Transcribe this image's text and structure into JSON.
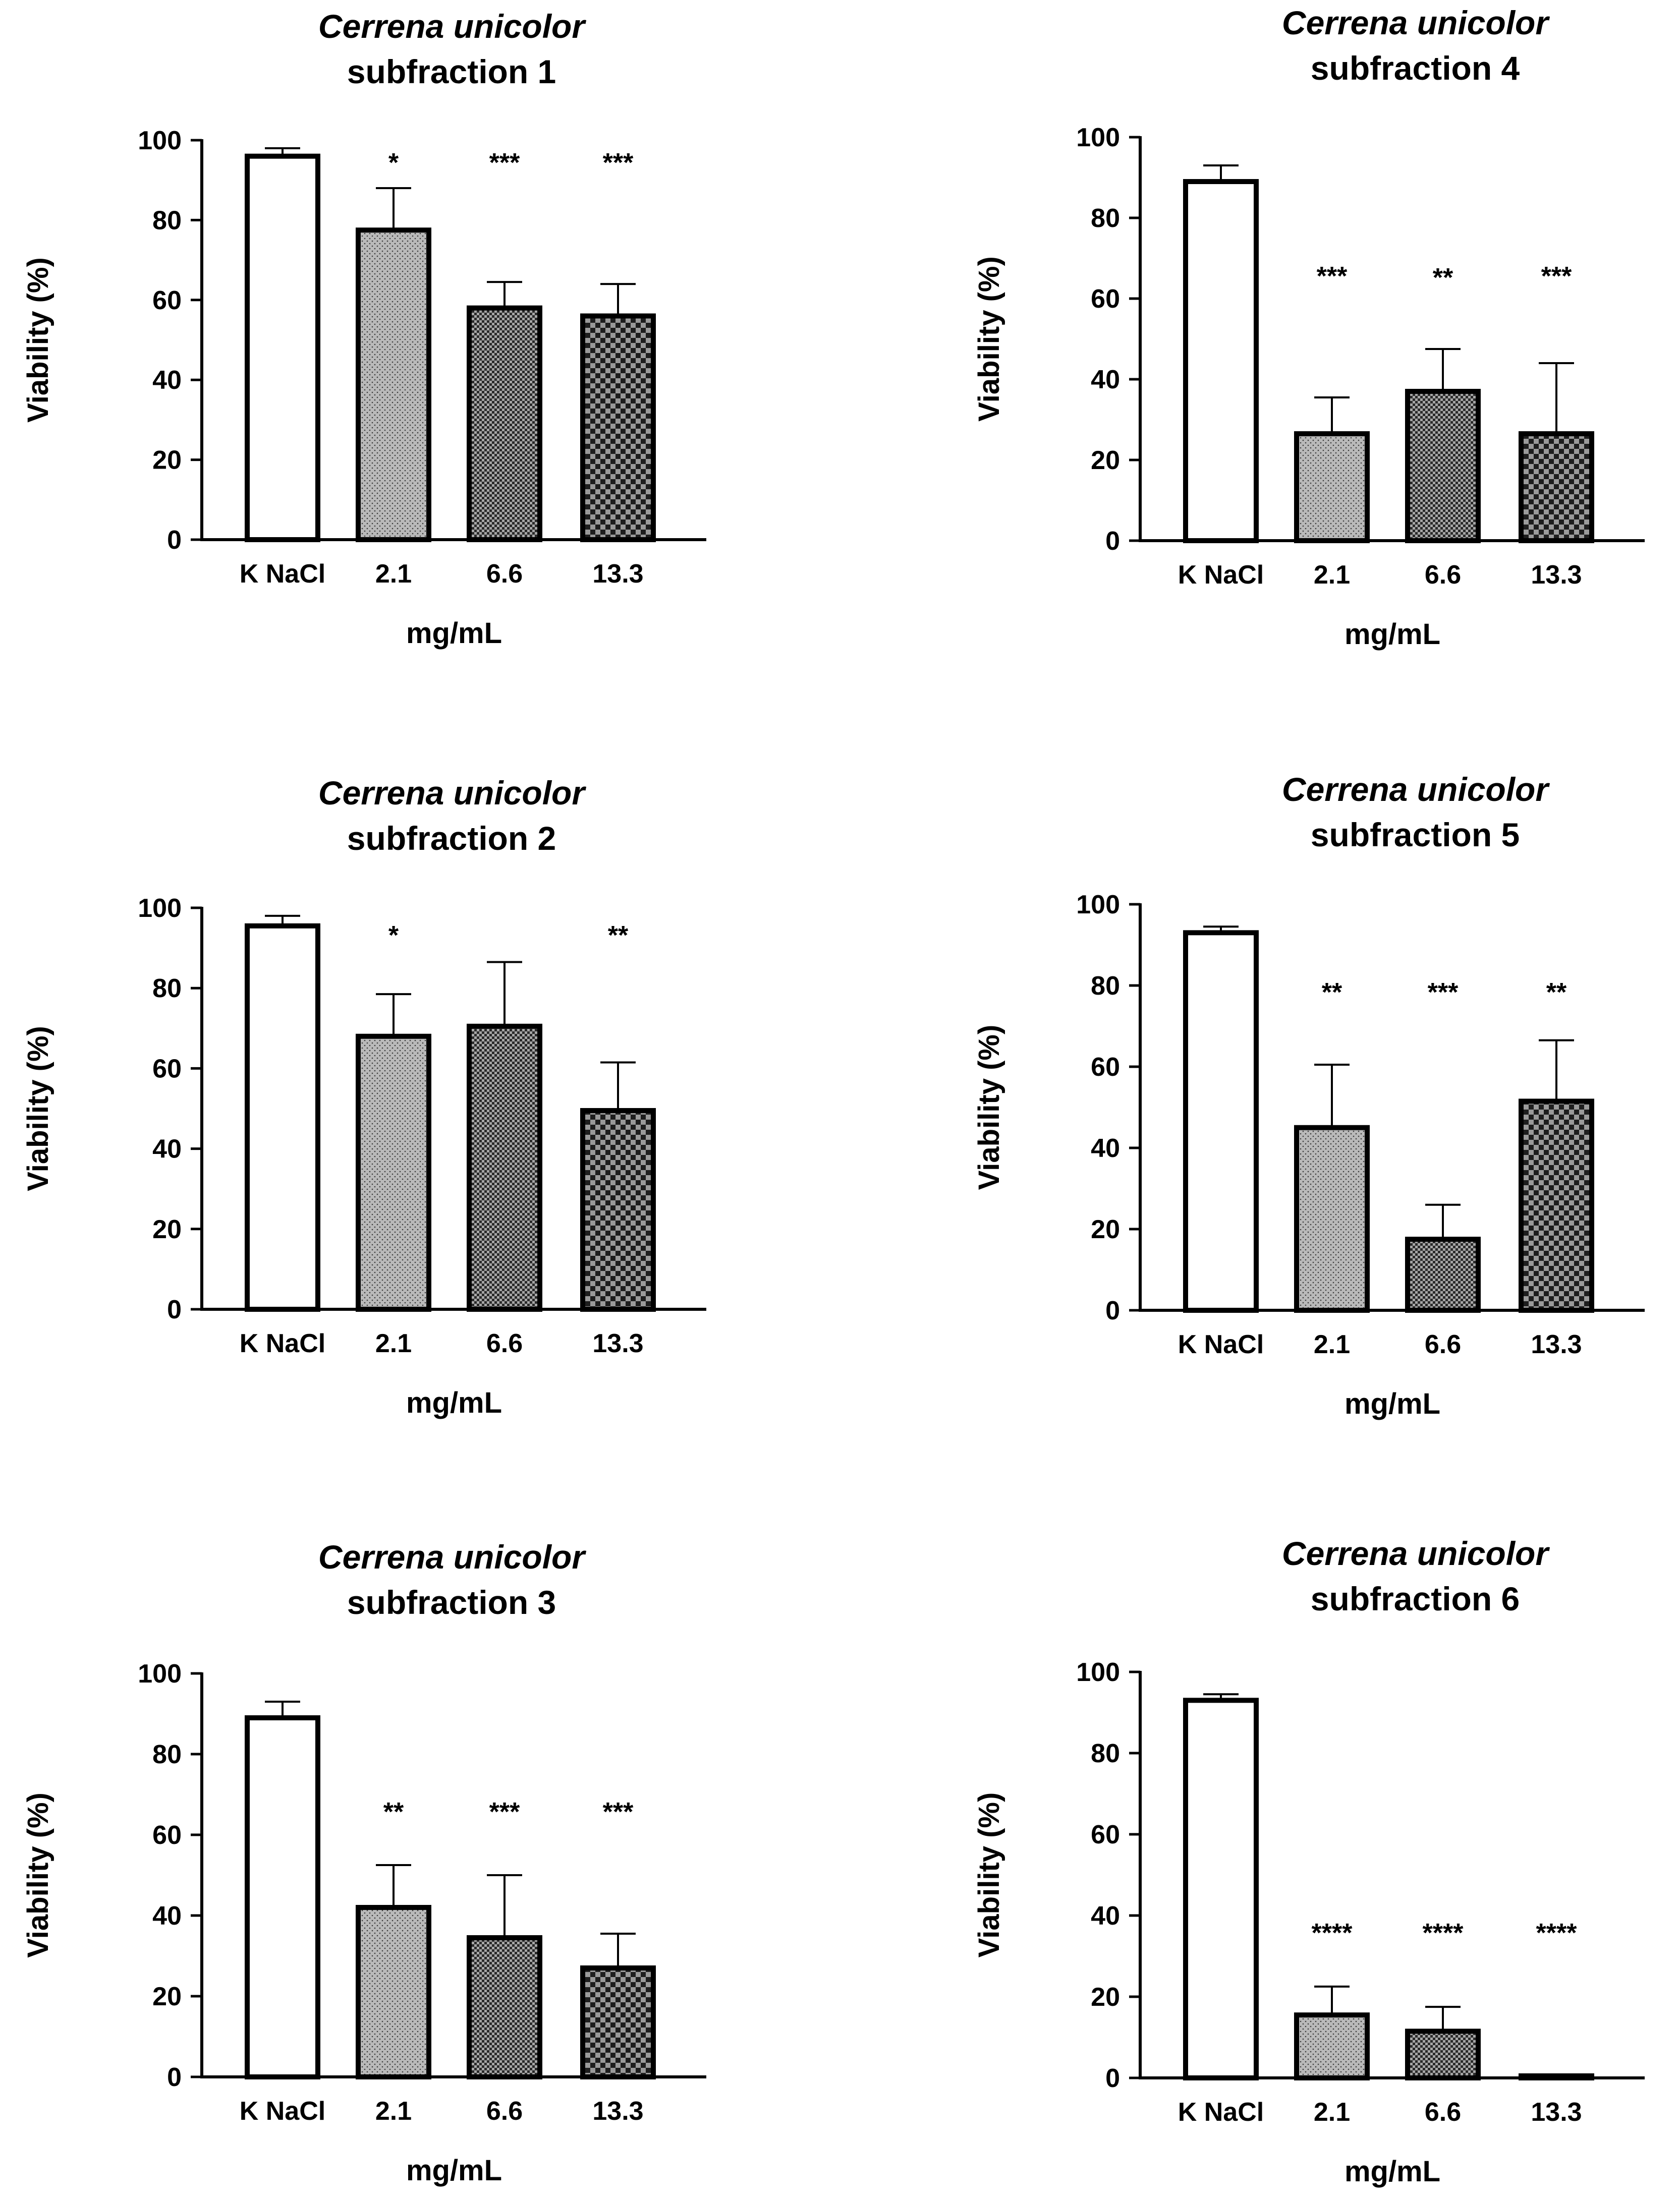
{
  "chart_data": [
    {
      "type": "bar",
      "title_line1": "Cerrena unicolor",
      "title_line2": "subfraction 1",
      "xlabel": "mg/mL",
      "ylabel": "Viability (%)",
      "categories": [
        "K NaCl",
        "2.1",
        "6.6",
        "13.3"
      ],
      "values": [
        96,
        77.5,
        58,
        56
      ],
      "errors": [
        2,
        10.5,
        6.5,
        8
      ],
      "significance": [
        "",
        "*",
        "***",
        "***"
      ],
      "ylim": [
        0,
        100
      ],
      "yticks": [
        "0",
        "20",
        "40",
        "60",
        "80",
        "100"
      ],
      "fill_patterns": [
        "white",
        "dots",
        "fine-check",
        "coarse-check"
      ]
    },
    {
      "type": "bar",
      "title_line1": "Cerrena unicolor",
      "title_line2": "subfraction 4",
      "xlabel": "mg/mL",
      "ylabel": "Viability (%)",
      "categories": [
        "K NaCl",
        "2.1",
        "6.6",
        "13.3"
      ],
      "values": [
        89,
        26.5,
        37,
        26.5
      ],
      "errors": [
        4,
        9,
        10.5,
        17.5
      ],
      "significance": [
        "",
        "***",
        "**",
        "***"
      ],
      "ylim": [
        0,
        100
      ],
      "yticks": [
        "0",
        "20",
        "40",
        "60",
        "80",
        "100"
      ],
      "fill_patterns": [
        "white",
        "dots",
        "fine-check",
        "coarse-check"
      ]
    },
    {
      "type": "bar",
      "title_line1": "Cerrena unicolor",
      "title_line2": "subfraction 2",
      "xlabel": "mg/mL",
      "ylabel": "Viability (%)",
      "categories": [
        "K NaCl",
        "2.1",
        "6.6",
        "13.3"
      ],
      "values": [
        95.5,
        68,
        70.5,
        49.5
      ],
      "errors": [
        2.5,
        10.5,
        16,
        12
      ],
      "significance": [
        "",
        "*",
        "",
        "**"
      ],
      "ylim": [
        0,
        100
      ],
      "yticks": [
        "0",
        "20",
        "40",
        "60",
        "80",
        "100"
      ],
      "fill_patterns": [
        "white",
        "dots",
        "fine-check",
        "coarse-check"
      ]
    },
    {
      "type": "bar",
      "title_line1": "Cerrena unicolor",
      "title_line2": "subfraction 5",
      "xlabel": "mg/mL",
      "ylabel": "Viability (%)",
      "categories": [
        "K NaCl",
        "2.1",
        "6.6",
        "13.3"
      ],
      "values": [
        93,
        45,
        17.5,
        51.5
      ],
      "errors": [
        1.5,
        15.5,
        8.5,
        15
      ],
      "significance": [
        "",
        "**",
        "***",
        "**"
      ],
      "ylim": [
        0,
        100
      ],
      "yticks": [
        "0",
        "20",
        "40",
        "60",
        "80",
        "100"
      ],
      "fill_patterns": [
        "white",
        "dots",
        "fine-check",
        "coarse-check"
      ]
    },
    {
      "type": "bar",
      "title_line1": "Cerrena unicolor",
      "title_line2": "subfraction 3",
      "xlabel": "mg/mL",
      "ylabel": "Viability (%)",
      "categories": [
        "K NaCl",
        "2.1",
        "6.6",
        "13.3"
      ],
      "values": [
        89,
        42,
        34.5,
        27
      ],
      "errors": [
        4,
        10.5,
        15.5,
        8.5
      ],
      "significance": [
        "",
        "**",
        "***",
        "***"
      ],
      "ylim": [
        0,
        100
      ],
      "yticks": [
        "0",
        "20",
        "40",
        "60",
        "80",
        "100"
      ],
      "fill_patterns": [
        "white",
        "dots",
        "fine-check",
        "coarse-check"
      ]
    },
    {
      "type": "bar",
      "title_line1": "Cerrena unicolor",
      "title_line2": "subfraction 6",
      "xlabel": "mg/mL",
      "ylabel": "Viability (%)",
      "categories": [
        "K NaCl",
        "2.1",
        "6.6",
        "13.3"
      ],
      "values": [
        93,
        15.5,
        11.5,
        0.5
      ],
      "errors": [
        1.5,
        7,
        6,
        0
      ],
      "significance": [
        "",
        "****",
        "****",
        "****"
      ],
      "ylim": [
        0,
        100
      ],
      "yticks": [
        "0",
        "20",
        "40",
        "60",
        "80",
        "100"
      ],
      "fill_patterns": [
        "white",
        "dots",
        "fine-check",
        "coarse-check"
      ]
    }
  ],
  "colors": {
    "axis": "#000000",
    "bar_stroke": "#000000",
    "white_fill": "#ffffff",
    "pattern_bg_light": "#b9b9b9",
    "pattern_bg_mid": "#a6a6a6",
    "pattern_bg_dark": "#9a9a9a",
    "pattern_ink": "#2a2a2a"
  }
}
